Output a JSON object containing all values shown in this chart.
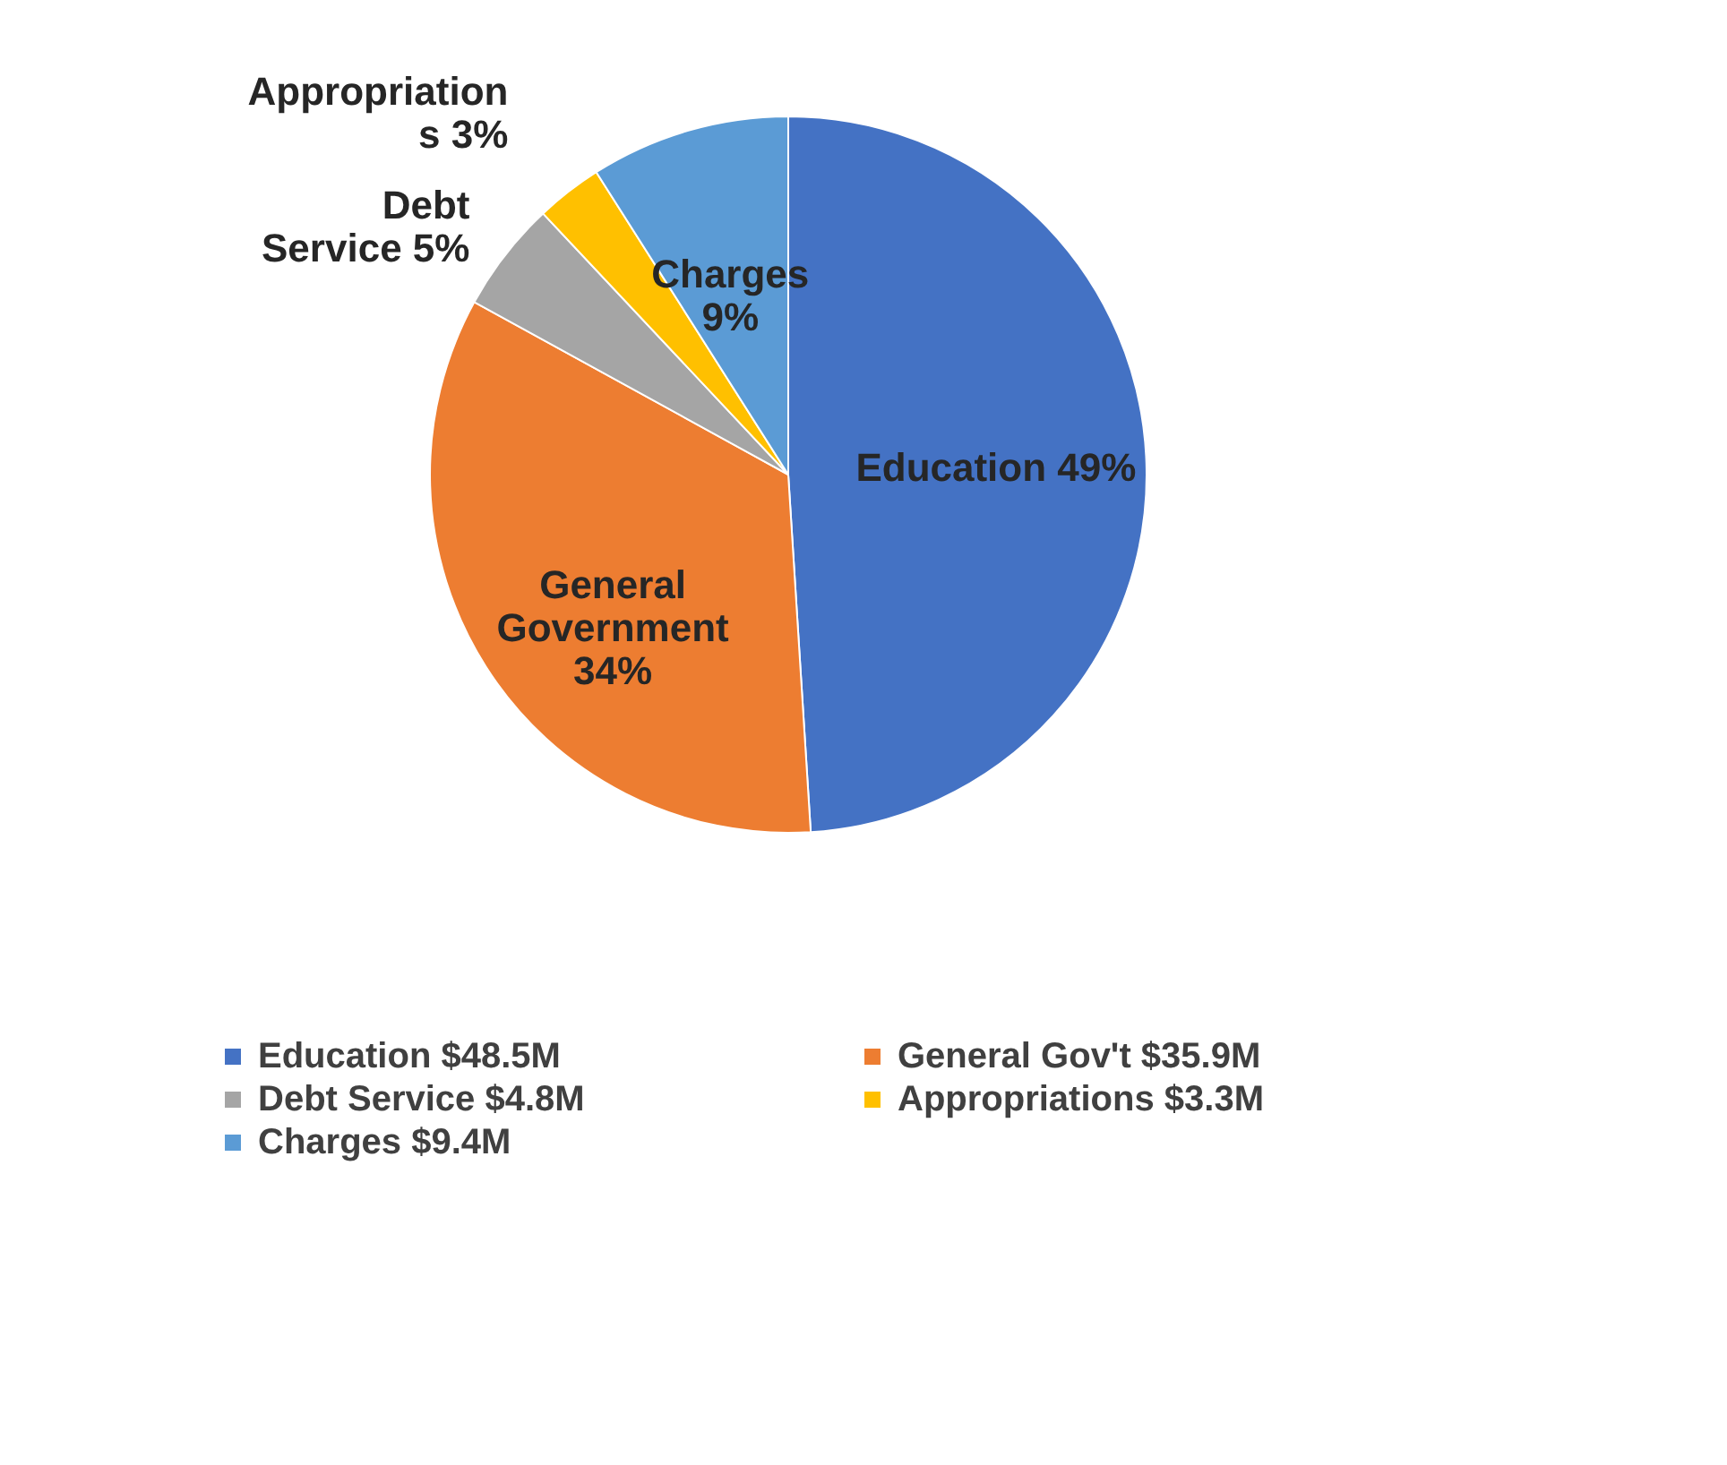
{
  "chart_data": {
    "type": "pie",
    "categories": [
      "Education $48.5M",
      "General Gov't $35.9M",
      "Debt Service $4.8M",
      "Appropriations $3.3M",
      "Charges $9.4M"
    ],
    "values": [
      49,
      34,
      5,
      3,
      9
    ],
    "value_labels": [
      "Education 49%",
      "General\nGovernment\n34%",
      "Debt\nService 5%",
      "Appropriation\ns 3%",
      "Charges\n9%"
    ],
    "colors": [
      "#4472c4",
      "#ed7d31",
      "#a5a5a5",
      "#ffc000",
      "#5b9bd5"
    ],
    "legend": "bottom"
  }
}
